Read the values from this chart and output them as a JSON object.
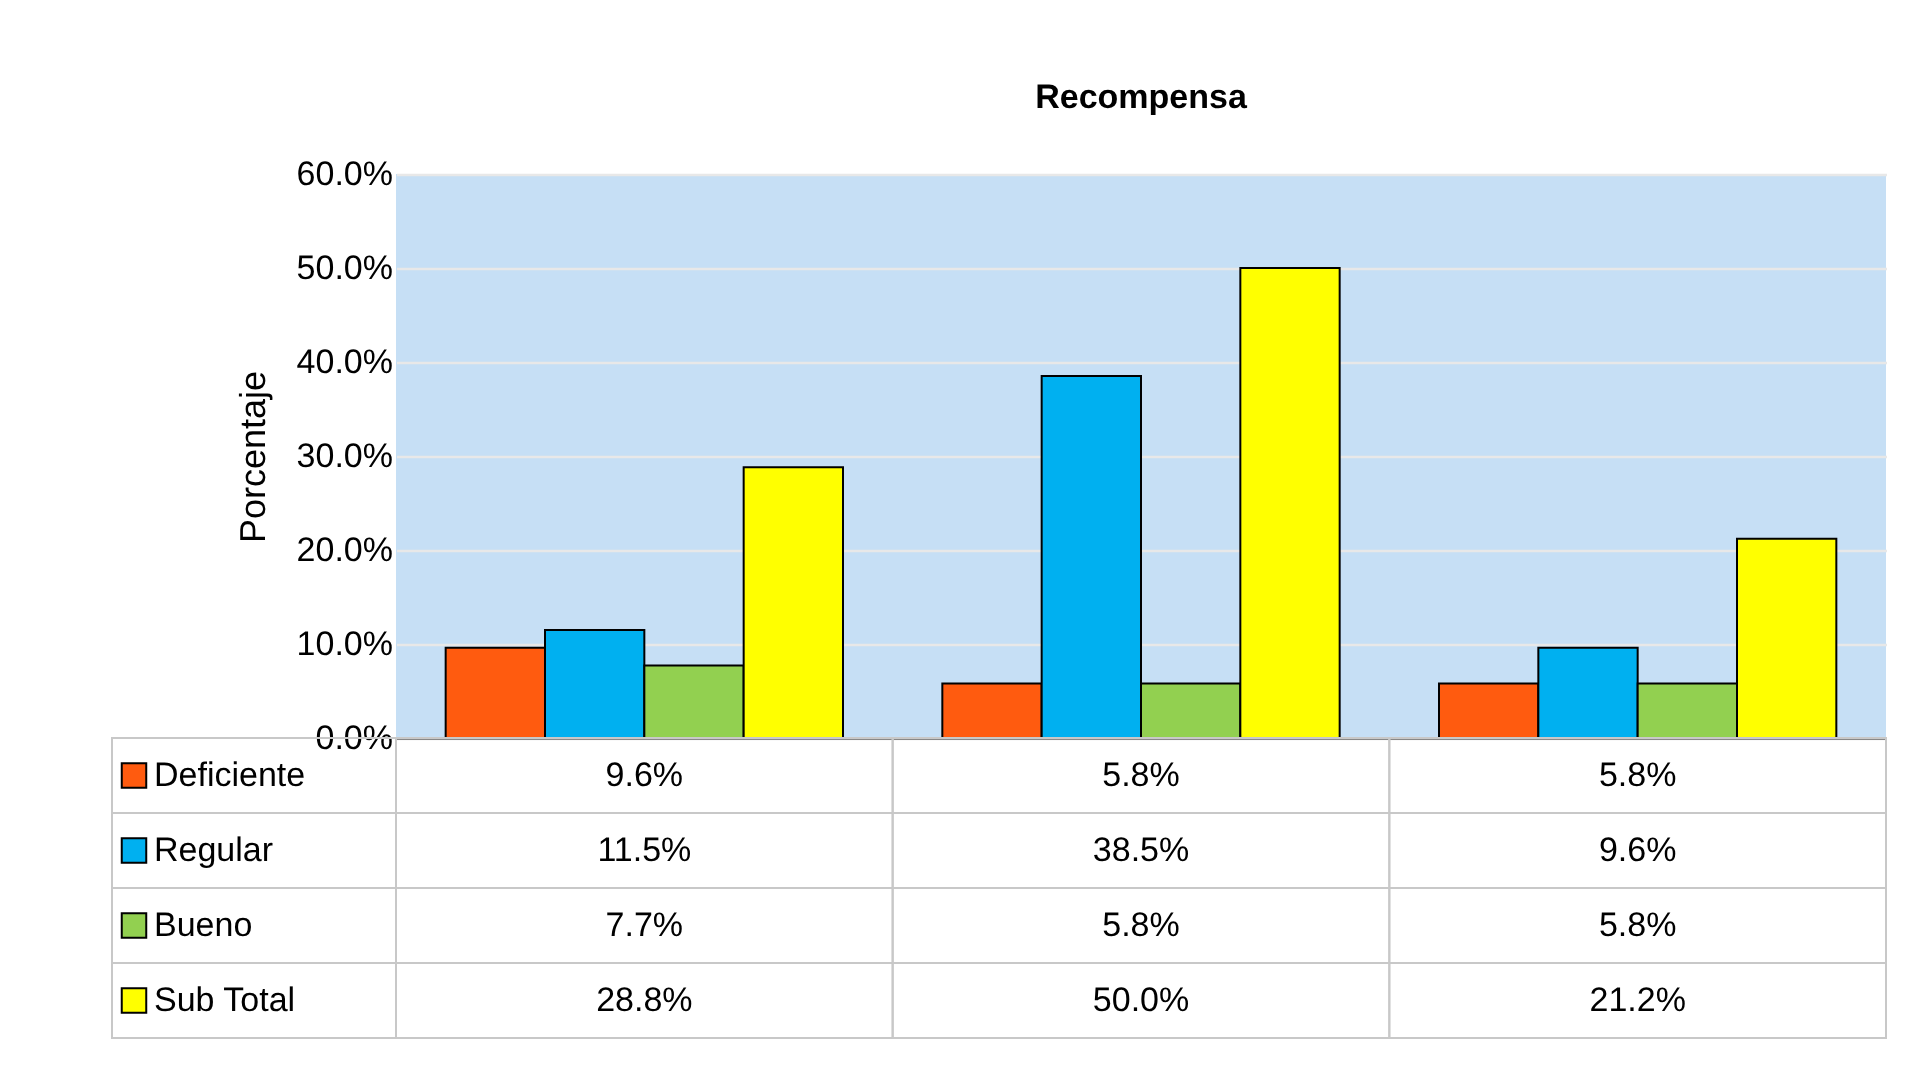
{
  "chart_data": {
    "type": "bar",
    "title": "Recompensa",
    "ylabel": "Porcentaje",
    "categories": [
      null,
      null,
      null
    ],
    "series": [
      {
        "name": "Deficiente",
        "color": "#ff5b0f",
        "values": [
          9.6,
          5.8,
          5.8
        ],
        "value_labels": [
          "9.6%",
          "5.8%",
          "5.8%"
        ]
      },
      {
        "name": "Regular",
        "color": "#00b0f0",
        "values": [
          11.5,
          38.5,
          9.6
        ],
        "value_labels": [
          "11.5%",
          "38.5%",
          "9.6%"
        ]
      },
      {
        "name": "Bueno",
        "color": "#92d050",
        "values": [
          7.7,
          5.8,
          5.8
        ],
        "value_labels": [
          "7.7%",
          "5.8%",
          "5.8%"
        ]
      },
      {
        "name": "Sub Total",
        "color": "#ffff00",
        "values": [
          28.8,
          50.0,
          21.2
        ],
        "value_labels": [
          "28.8%",
          "50.0%",
          "21.2%"
        ]
      }
    ],
    "ylim": [
      0,
      60
    ],
    "yticks": [
      {
        "value": 0,
        "label": "0.0%"
      },
      {
        "value": 10,
        "label": "10.0%"
      },
      {
        "value": 20,
        "label": "20.0%"
      },
      {
        "value": 30,
        "label": "30.0%"
      },
      {
        "value": 40,
        "label": "40.0%"
      },
      {
        "value": 50,
        "label": "50.0%"
      },
      {
        "value": 60,
        "label": "60.0%"
      }
    ],
    "grid": "y",
    "legend": "bottom",
    "tick_labels": "y"
  }
}
